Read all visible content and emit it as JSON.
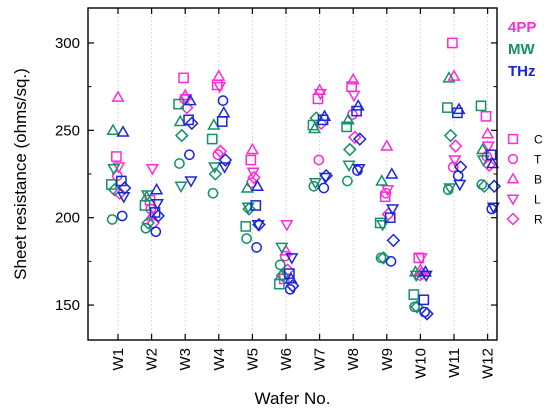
{
  "chart_data": {
    "type": "scatter",
    "xlabel": "Wafer No.",
    "ylabel": "Sheet resistance (ohms/sq.)",
    "categories": [
      "W1",
      "W2",
      "W3",
      "W4",
      "W5",
      "W6",
      "W7",
      "W8",
      "W9",
      "W10",
      "W11",
      "W12"
    ],
    "ylim": [
      130,
      320
    ],
    "yticks": [
      150,
      200,
      250,
      300
    ],
    "grid": "vertical dotted lines at wafer positions",
    "methods": [
      {
        "name": "4PP",
        "color": "#ff2bd6"
      },
      {
        "name": "MW",
        "color": "#14906a"
      },
      {
        "name": "THz",
        "color": "#1a26d9"
      }
    ],
    "markers": [
      {
        "name": "C",
        "shape": "square"
      },
      {
        "name": "T",
        "shape": "circle"
      },
      {
        "name": "B",
        "shape": "triangle-up"
      },
      {
        "name": "L",
        "shape": "triangle-down"
      },
      {
        "name": "R",
        "shape": "diamond"
      }
    ],
    "series": [
      {
        "method": "4PP",
        "marker": "C",
        "values": [
          235,
          210,
          280,
          276,
          233,
          165,
          268,
          275,
          212,
          177,
          300,
          258
        ]
      },
      {
        "method": "4PP",
        "marker": "T",
        "values": [
          224,
          205,
          268,
          236,
          220,
          178,
          233,
          259,
          214,
          167,
          229,
          235
        ]
      },
      {
        "method": "4PP",
        "marker": "B",
        "values": [
          269,
          201,
          270,
          281,
          239,
          181,
          273,
          279,
          241,
          170,
          281,
          248
        ]
      },
      {
        "method": "4PP",
        "marker": "L",
        "values": [
          229,
          228,
          268,
          275,
          226,
          196,
          271,
          270,
          216,
          177,
          233,
          241
        ]
      },
      {
        "method": "4PP",
        "marker": "R",
        "values": [
          214,
          197,
          263,
          238,
          223,
          170,
          254,
          246,
          202,
          168,
          241,
          230
        ]
      },
      {
        "method": "MW",
        "marker": "C",
        "values": [
          219,
          207,
          265,
          245,
          195,
          162,
          253,
          252,
          197,
          156,
          263,
          264
        ]
      },
      {
        "method": "MW",
        "marker": "T",
        "values": [
          199,
          194,
          231,
          214,
          188,
          173,
          218,
          221,
          177,
          149,
          216,
          219
        ]
      },
      {
        "method": "MW",
        "marker": "B",
        "values": [
          250,
          212,
          255,
          253,
          217,
          167,
          251,
          256,
          221,
          169,
          280,
          239
        ]
      },
      {
        "method": "MW",
        "marker": "L",
        "values": [
          228,
          213,
          218,
          229,
          206,
          183,
          220,
          230,
          196,
          167,
          217,
          233
        ]
      },
      {
        "method": "MW",
        "marker": "R",
        "values": [
          216,
          197,
          247,
          225,
          205,
          167,
          257,
          239,
          177,
          149,
          247,
          218
        ]
      },
      {
        "method": "THz",
        "marker": "C",
        "values": [
          221,
          203,
          256,
          255,
          207,
          168,
          256,
          261,
          200,
          153,
          260,
          236
        ]
      },
      {
        "method": "THz",
        "marker": "T",
        "values": [
          201,
          192,
          236,
          267,
          183,
          159,
          217,
          227,
          175,
          146,
          224,
          205
        ]
      },
      {
        "method": "THz",
        "marker": "B",
        "values": [
          249,
          216,
          267,
          260,
          218,
          165,
          258,
          264,
          225,
          169,
          262,
          231
        ]
      },
      {
        "method": "THz",
        "marker": "L",
        "values": [
          212,
          208,
          221,
          229,
          196,
          177,
          223,
          228,
          205,
          167,
          219,
          206
        ]
      },
      {
        "method": "THz",
        "marker": "R",
        "values": [
          217,
          201,
          254,
          233,
          196,
          161,
          224,
          245,
          187,
          145,
          229,
          218
        ]
      }
    ]
  }
}
